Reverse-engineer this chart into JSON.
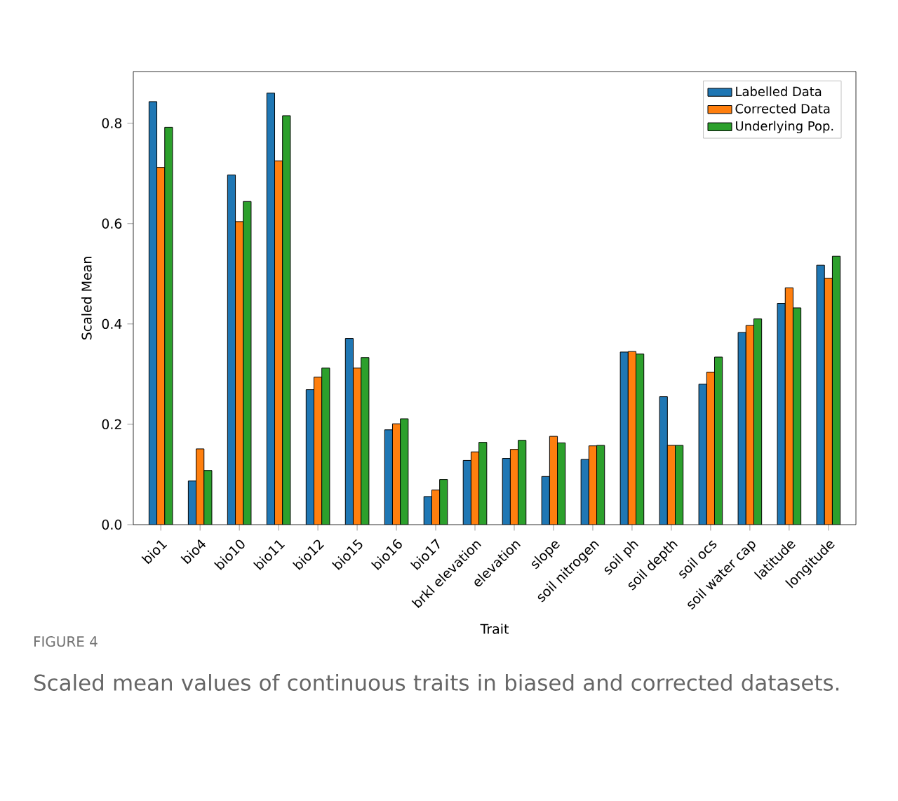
{
  "chart_data": {
    "type": "bar",
    "xlabel": "Trait",
    "ylabel": "Scaled Mean",
    "categories": [
      "bio1",
      "bio4",
      "bio10",
      "bio11",
      "bio12",
      "bio15",
      "bio16",
      "bio17",
      "brkl elevation",
      "elevation",
      "slope",
      "soil nitrogen",
      "soil ph",
      "soil depth",
      "soil ocs",
      "soil water cap",
      "latitude",
      "longitude"
    ],
    "series": [
      {
        "name": "Labelled Data",
        "color": "#1f77b4",
        "values": [
          0.843,
          0.087,
          0.697,
          0.86,
          0.269,
          0.371,
          0.189,
          0.056,
          0.128,
          0.132,
          0.096,
          0.13,
          0.344,
          0.255,
          0.28,
          0.383,
          0.441,
          0.517
        ]
      },
      {
        "name": "Corrected Data",
        "color": "#ff7f0e",
        "values": [
          0.712,
          0.151,
          0.604,
          0.725,
          0.294,
          0.312,
          0.201,
          0.069,
          0.145,
          0.15,
          0.176,
          0.157,
          0.345,
          0.158,
          0.304,
          0.397,
          0.472,
          0.491
        ]
      },
      {
        "name": "Underlying Pop.",
        "color": "#2ca02c",
        "values": [
          0.792,
          0.108,
          0.644,
          0.815,
          0.312,
          0.333,
          0.211,
          0.09,
          0.164,
          0.168,
          0.163,
          0.158,
          0.34,
          0.158,
          0.334,
          0.41,
          0.432,
          0.535
        ]
      }
    ],
    "ylim": [
      0,
      0.903
    ],
    "yticks": [
      {
        "value": 0,
        "label": "0.0"
      },
      {
        "value": 0.2,
        "label": "0.2"
      },
      {
        "value": 0.4,
        "label": "0.4"
      },
      {
        "value": 0.6,
        "label": "0.6"
      },
      {
        "value": 0.8,
        "label": "0.8"
      }
    ],
    "grid": false,
    "legend": "top right",
    "annotations": [
      "FIGURE 4",
      "Scaled mean values of continuous traits in biased and corrected datasets."
    ]
  }
}
